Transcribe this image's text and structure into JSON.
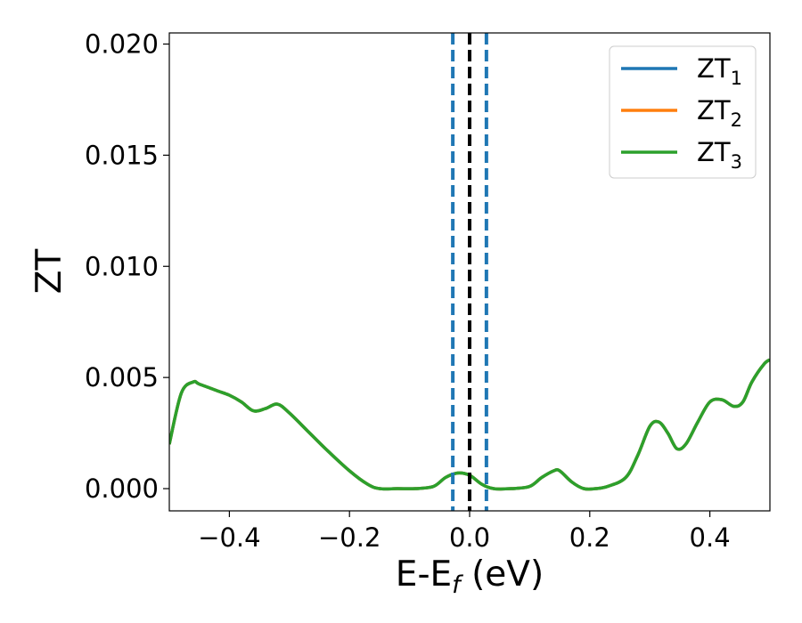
{
  "chart_data": {
    "type": "line",
    "xlabel": "E-E",
    "xlabel_sub": "f",
    "xlabel_unit": " (eV)",
    "ylabel": "ZT",
    "xlim": [
      -0.5,
      0.5
    ],
    "ylim": [
      -0.001,
      0.0205
    ],
    "x_ticks": [
      -0.4,
      -0.2,
      0.0,
      0.2,
      0.4
    ],
    "x_tick_labels": [
      "−0.4",
      "−0.2",
      "0.0",
      "0.2",
      "0.4"
    ],
    "y_ticks": [
      0.0,
      0.005,
      0.01,
      0.015,
      0.02
    ],
    "y_tick_labels": [
      "0.000",
      "0.005",
      "0.010",
      "0.015",
      "0.020"
    ],
    "grid": false,
    "legend_position": "top-right",
    "series": [
      {
        "name": "ZT",
        "name_sub": "1",
        "color": "#1f77b4",
        "x": [
          -0.5,
          -0.48,
          -0.46,
          -0.45,
          -0.42,
          -0.4,
          -0.38,
          -0.36,
          -0.34,
          -0.32,
          -0.3,
          -0.27,
          -0.24,
          -0.2,
          -0.17,
          -0.15,
          -0.12,
          -0.09,
          -0.06,
          -0.04,
          -0.02,
          0.0,
          0.02,
          0.04,
          0.07,
          0.1,
          0.12,
          0.14,
          0.15,
          0.17,
          0.19,
          0.21,
          0.23,
          0.26,
          0.28,
          0.3,
          0.315,
          0.33,
          0.345,
          0.36,
          0.38,
          0.4,
          0.42,
          0.44,
          0.455,
          0.47,
          0.49,
          0.5
        ],
        "y": [
          0.002,
          0.0043,
          0.0048,
          0.0047,
          0.0044,
          0.0042,
          0.0039,
          0.0035,
          0.0036,
          0.0038,
          0.0034,
          0.0026,
          0.0018,
          0.0008,
          0.0002,
          0.0,
          0.0,
          0.0,
          0.0001,
          0.0005,
          0.0007,
          0.0006,
          0.0002,
          0.0,
          0.0,
          0.0001,
          0.0005,
          0.0008,
          0.0008,
          0.0003,
          0.0,
          0.0,
          0.0001,
          0.0005,
          0.0015,
          0.0028,
          0.003,
          0.0025,
          0.0018,
          0.002,
          0.003,
          0.0039,
          0.004,
          0.0037,
          0.0039,
          0.0048,
          0.0056,
          0.0058
        ]
      },
      {
        "name": "ZT",
        "name_sub": "2",
        "color": "#ff7f0e",
        "x": [
          -0.5,
          -0.48,
          -0.46,
          -0.45,
          -0.42,
          -0.4,
          -0.38,
          -0.36,
          -0.34,
          -0.32,
          -0.3,
          -0.27,
          -0.24,
          -0.2,
          -0.17,
          -0.15,
          -0.12,
          -0.09,
          -0.06,
          -0.04,
          -0.02,
          0.0,
          0.02,
          0.04,
          0.07,
          0.1,
          0.12,
          0.14,
          0.15,
          0.17,
          0.19,
          0.21,
          0.23,
          0.26,
          0.28,
          0.3,
          0.315,
          0.33,
          0.345,
          0.36,
          0.38,
          0.4,
          0.42,
          0.44,
          0.455,
          0.47,
          0.49,
          0.5
        ],
        "y": [
          0.002,
          0.0043,
          0.0048,
          0.0047,
          0.0044,
          0.0042,
          0.0039,
          0.0035,
          0.0036,
          0.0038,
          0.0034,
          0.0026,
          0.0018,
          0.0008,
          0.0002,
          0.0,
          0.0,
          0.0,
          0.0001,
          0.0005,
          0.0007,
          0.0006,
          0.0002,
          0.0,
          0.0,
          0.0001,
          0.0005,
          0.0008,
          0.0008,
          0.0003,
          0.0,
          0.0,
          0.0001,
          0.0005,
          0.0015,
          0.0028,
          0.003,
          0.0025,
          0.0018,
          0.002,
          0.003,
          0.0039,
          0.004,
          0.0037,
          0.0039,
          0.0048,
          0.0056,
          0.0058
        ]
      },
      {
        "name": "ZT",
        "name_sub": "3",
        "color": "#2ca02c",
        "x": [
          -0.5,
          -0.48,
          -0.46,
          -0.45,
          -0.42,
          -0.4,
          -0.38,
          -0.36,
          -0.34,
          -0.32,
          -0.3,
          -0.27,
          -0.24,
          -0.2,
          -0.17,
          -0.15,
          -0.12,
          -0.09,
          -0.06,
          -0.04,
          -0.02,
          0.0,
          0.02,
          0.04,
          0.07,
          0.1,
          0.12,
          0.14,
          0.15,
          0.17,
          0.19,
          0.21,
          0.23,
          0.26,
          0.28,
          0.3,
          0.315,
          0.33,
          0.345,
          0.36,
          0.38,
          0.4,
          0.42,
          0.44,
          0.455,
          0.47,
          0.49,
          0.5
        ],
        "y": [
          0.002,
          0.0043,
          0.0048,
          0.0047,
          0.0044,
          0.0042,
          0.0039,
          0.0035,
          0.0036,
          0.0038,
          0.0034,
          0.0026,
          0.0018,
          0.0008,
          0.0002,
          0.0,
          0.0,
          0.0,
          0.0001,
          0.0005,
          0.0007,
          0.0006,
          0.0002,
          0.0,
          0.0,
          0.0001,
          0.0005,
          0.0008,
          0.0008,
          0.0003,
          0.0,
          0.0,
          0.0001,
          0.0005,
          0.0015,
          0.0028,
          0.003,
          0.0025,
          0.0018,
          0.002,
          0.003,
          0.0039,
          0.004,
          0.0037,
          0.0039,
          0.0048,
          0.0056,
          0.0058
        ]
      }
    ],
    "vertical_lines": [
      {
        "x": -0.028,
        "color": "#1f77b4",
        "style": "dashed"
      },
      {
        "x": 0.0,
        "color": "#1f77b4",
        "style": "dashed"
      },
      {
        "x": 0.028,
        "color": "#1f77b4",
        "style": "dashed"
      },
      {
        "x": 0.0,
        "color": "#000000",
        "style": "dashed"
      }
    ]
  }
}
